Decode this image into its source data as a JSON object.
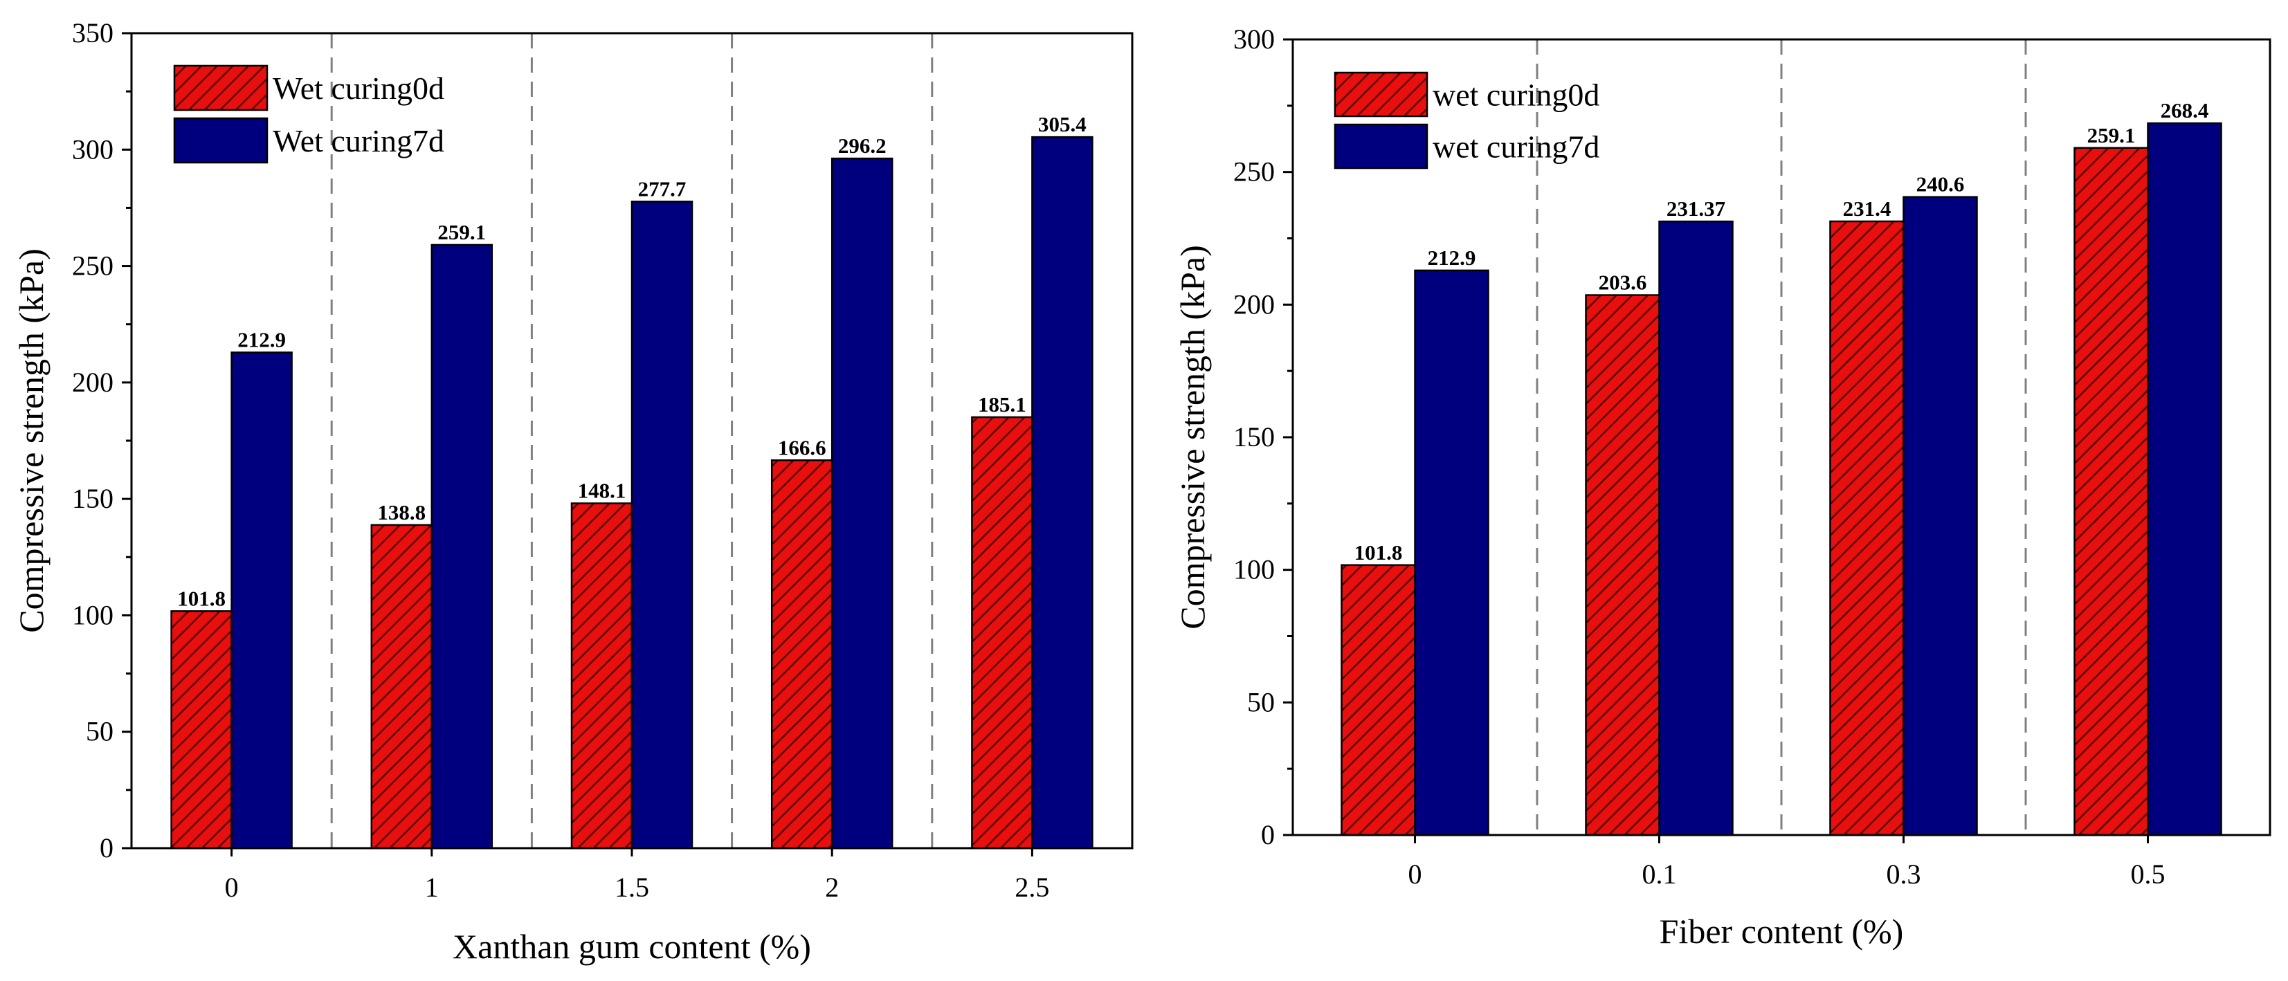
{
  "colors": {
    "series0_fill": "#e8100e",
    "series0_hatch": "#5a0000",
    "series1_fill": "#00007f",
    "outline": "#000000",
    "separator": "#808080"
  },
  "chart_data": [
    {
      "type": "bar",
      "categories": [
        "0",
        "1",
        "1.5",
        "2",
        "2.5"
      ],
      "series": [
        {
          "name": "Wet curing0d",
          "values": [
            101.8,
            138.8,
            148.1,
            166.6,
            185.1
          ],
          "labels": [
            "101.8",
            "138.8",
            "148.1",
            "166.6",
            "185.1"
          ]
        },
        {
          "name": "Wet curing7d",
          "values": [
            212.9,
            259.1,
            277.7,
            296.2,
            305.4
          ],
          "labels": [
            "212.9",
            "259.1",
            "277.7",
            "296.2",
            "305.4"
          ]
        }
      ],
      "xlabel": "Xanthan gum content (%)",
      "ylabel": "Compressive strength (kPa)",
      "ylim": [
        0,
        350
      ],
      "yticks": [
        0,
        50,
        100,
        150,
        200,
        250,
        300,
        350
      ],
      "grid": false,
      "category_separators": true,
      "legend": "top-left"
    },
    {
      "type": "bar",
      "categories": [
        "0",
        "0.1",
        "0.3",
        "0.5"
      ],
      "series": [
        {
          "name": "wet curing0d",
          "values": [
            101.8,
            203.6,
            231.4,
            259.1
          ],
          "labels": [
            "101.8",
            "203.6",
            "231.4",
            "259.1"
          ]
        },
        {
          "name": "wet curing7d",
          "values": [
            212.9,
            231.37,
            240.6,
            268.4
          ],
          "labels": [
            "212.9",
            "231.37",
            "240.6",
            "268.4"
          ]
        }
      ],
      "xlabel": "Fiber content (%)",
      "ylabel": "Compressive strength (kPa)",
      "ylim": [
        0,
        300
      ],
      "yticks": [
        0,
        50,
        100,
        150,
        200,
        250,
        300
      ],
      "grid": false,
      "category_separators": true,
      "legend": "top-left"
    }
  ]
}
